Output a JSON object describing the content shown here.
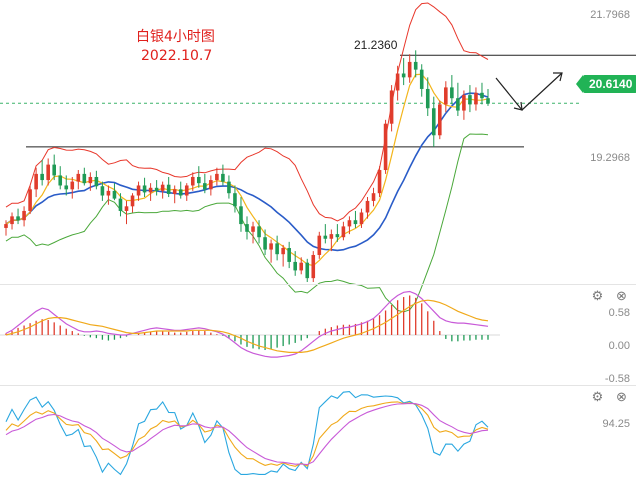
{
  "chart_data": [
    {
      "type": "candlestick",
      "title": "白银4小时图",
      "subtitle": "2022.10.7",
      "price_axis_ticks": [
        "21.7968",
        "19.2968"
      ],
      "current_price": "20.6140",
      "horizontal_levels": [
        {
          "label": "21.2360",
          "value": 21.236
        },
        {
          "label": "",
          "value": 20.05
        }
      ],
      "indicators": [
        "Bollinger Bands (upper, middle, lower)",
        "moving average"
      ],
      "ylim": [
        18.3,
        21.9
      ],
      "candles": [
        [
          19.0,
          19.1,
          18.9,
          19.05
        ],
        [
          19.05,
          19.2,
          18.98,
          19.15
        ],
        [
          19.15,
          19.25,
          19.05,
          19.1
        ],
        [
          19.1,
          19.28,
          19.02,
          19.22
        ],
        [
          19.22,
          19.55,
          19.18,
          19.5
        ],
        [
          19.5,
          19.78,
          19.4,
          19.7
        ],
        [
          19.7,
          19.88,
          19.55,
          19.62
        ],
        [
          19.62,
          19.9,
          19.55,
          19.82
        ],
        [
          19.82,
          19.95,
          19.62,
          19.68
        ],
        [
          19.68,
          19.8,
          19.5,
          19.55
        ],
        [
          19.55,
          19.68,
          19.42,
          19.5
        ],
        [
          19.5,
          19.66,
          19.38,
          19.6
        ],
        [
          19.6,
          19.75,
          19.5,
          19.7
        ],
        [
          19.7,
          19.78,
          19.55,
          19.58
        ],
        [
          19.58,
          19.72,
          19.48,
          19.66
        ],
        [
          19.66,
          19.74,
          19.5,
          19.54
        ],
        [
          19.54,
          19.6,
          19.35,
          19.42
        ],
        [
          19.42,
          19.55,
          19.3,
          19.48
        ],
        [
          19.48,
          19.58,
          19.36,
          19.38
        ],
        [
          19.38,
          19.45,
          19.15,
          19.22
        ],
        [
          19.22,
          19.35,
          19.05,
          19.28
        ],
        [
          19.28,
          19.45,
          19.2,
          19.42
        ],
        [
          19.42,
          19.6,
          19.35,
          19.55
        ],
        [
          19.55,
          19.65,
          19.4,
          19.46
        ],
        [
          19.46,
          19.58,
          19.35,
          19.52
        ],
        [
          19.52,
          19.62,
          19.42,
          19.48
        ],
        [
          19.48,
          19.6,
          19.38,
          19.56
        ],
        [
          19.56,
          19.66,
          19.4,
          19.44
        ],
        [
          19.44,
          19.55,
          19.32,
          19.5
        ],
        [
          19.5,
          19.6,
          19.38,
          19.42
        ],
        [
          19.42,
          19.58,
          19.35,
          19.55
        ],
        [
          19.55,
          19.72,
          19.48,
          19.66
        ],
        [
          19.66,
          19.8,
          19.52,
          19.58
        ],
        [
          19.58,
          19.7,
          19.45,
          19.5
        ],
        [
          19.5,
          19.68,
          19.42,
          19.62
        ],
        [
          19.62,
          19.78,
          19.55,
          19.7
        ],
        [
          19.7,
          19.82,
          19.55,
          19.6
        ],
        [
          19.6,
          19.68,
          19.38,
          19.45
        ],
        [
          19.45,
          19.55,
          19.2,
          19.28
        ],
        [
          19.28,
          19.4,
          18.95,
          19.05
        ],
        [
          19.05,
          19.15,
          18.85,
          18.95
        ],
        [
          18.95,
          19.08,
          18.8,
          19.02
        ],
        [
          19.02,
          19.1,
          18.8,
          18.88
        ],
        [
          18.88,
          18.98,
          18.65,
          18.72
        ],
        [
          18.72,
          18.85,
          18.55,
          18.8
        ],
        [
          18.8,
          18.9,
          18.58,
          18.66
        ],
        [
          18.66,
          18.78,
          18.5,
          18.74
        ],
        [
          18.74,
          18.82,
          18.48,
          18.56
        ],
        [
          18.56,
          18.7,
          18.38,
          18.45
        ],
        [
          18.45,
          18.62,
          18.4,
          18.55
        ],
        [
          18.55,
          18.6,
          18.3,
          18.35
        ],
        [
          18.35,
          18.7,
          18.3,
          18.65
        ],
        [
          18.65,
          18.95,
          18.6,
          18.9
        ],
        [
          18.9,
          19.05,
          18.8,
          18.86
        ],
        [
          18.86,
          18.98,
          18.7,
          18.92
        ],
        [
          18.92,
          19.05,
          18.82,
          18.88
        ],
        [
          18.88,
          19.08,
          18.84,
          19.02
        ],
        [
          19.02,
          19.15,
          18.92,
          19.1
        ],
        [
          19.1,
          19.22,
          19.0,
          19.05
        ],
        [
          19.05,
          19.25,
          19.0,
          19.2
        ],
        [
          19.2,
          19.4,
          19.12,
          19.35
        ],
        [
          19.35,
          19.52,
          19.28,
          19.45
        ],
        [
          19.45,
          19.8,
          19.4,
          19.75
        ],
        [
          19.75,
          20.4,
          19.7,
          20.35
        ],
        [
          20.35,
          20.85,
          20.25,
          20.78
        ],
        [
          20.78,
          21.1,
          20.65,
          21.0
        ],
        [
          21.0,
          21.2,
          20.85,
          20.95
        ],
        [
          20.95,
          21.25,
          20.88,
          21.15
        ],
        [
          21.15,
          21.3,
          20.95,
          21.05
        ],
        [
          21.05,
          21.12,
          20.7,
          20.8
        ],
        [
          20.8,
          20.95,
          20.45,
          20.55
        ],
        [
          20.55,
          20.7,
          20.05,
          20.2
        ],
        [
          20.2,
          20.65,
          20.15,
          20.6
        ],
        [
          20.6,
          20.9,
          20.5,
          20.82
        ],
        [
          20.82,
          20.98,
          20.6,
          20.68
        ],
        [
          20.68,
          20.88,
          20.45,
          20.52
        ],
        [
          20.52,
          20.78,
          20.4,
          20.72
        ],
        [
          20.72,
          20.85,
          20.5,
          20.6
        ],
        [
          20.6,
          20.82,
          20.52,
          20.75
        ],
        [
          20.75,
          20.88,
          20.6,
          20.68
        ],
        [
          20.68,
          20.8,
          20.58,
          20.61
        ]
      ]
    },
    {
      "type": "line",
      "panel": "MACD",
      "tick_labels": [
        "0.58",
        "0.00",
        "-0.58"
      ],
      "ylim": [
        -0.62,
        0.62
      ],
      "histogram": [
        0.02,
        0.05,
        0.09,
        0.12,
        0.15,
        0.18,
        0.2,
        0.19,
        0.16,
        0.12,
        0.08,
        0.05,
        0.02,
        -0.01,
        -0.03,
        -0.04,
        -0.06,
        -0.07,
        -0.06,
        -0.04,
        -0.02,
        0.0,
        0.02,
        0.03,
        0.04,
        0.05,
        0.05,
        0.04,
        0.03,
        0.03,
        0.04,
        0.05,
        0.06,
        0.05,
        0.03,
        0.01,
        -0.01,
        -0.04,
        -0.08,
        -0.12,
        -0.15,
        -0.17,
        -0.18,
        -0.19,
        -0.18,
        -0.16,
        -0.14,
        -0.12,
        -0.1,
        -0.07,
        -0.04,
        0.0,
        0.05,
        0.08,
        0.1,
        0.12,
        0.13,
        0.13,
        0.14,
        0.16,
        0.18,
        0.21,
        0.25,
        0.31,
        0.38,
        0.44,
        0.48,
        0.5,
        0.47,
        0.4,
        0.3,
        0.18,
        0.05,
        -0.05,
        -0.08,
        -0.08,
        -0.07,
        -0.07,
        -0.06,
        -0.06,
        -0.06
      ],
      "series": [
        {
          "color": "#c85ad8",
          "values": [
            0.02,
            0.06,
            0.12,
            0.18,
            0.24,
            0.3,
            0.34,
            0.32,
            0.26,
            0.2,
            0.14,
            0.1,
            0.06,
            0.04,
            0.04,
            0.05,
            0.04,
            0.02,
            0.01,
            0.0,
            0.0,
            0.02,
            0.04,
            0.06,
            0.08,
            0.09,
            0.08,
            0.07,
            0.06,
            0.06,
            0.07,
            0.08,
            0.09,
            0.08,
            0.06,
            0.04,
            0.01,
            -0.04,
            -0.1,
            -0.16,
            -0.2,
            -0.23,
            -0.25,
            -0.27,
            -0.28,
            -0.28,
            -0.27,
            -0.26,
            -0.24,
            -0.2,
            -0.14,
            -0.08,
            -0.02,
            0.02,
            0.05,
            0.07,
            0.09,
            0.1,
            0.12,
            0.14,
            0.17,
            0.21,
            0.28,
            0.36,
            0.44,
            0.5,
            0.54,
            0.55,
            0.52,
            0.46,
            0.38,
            0.3,
            0.22,
            0.18,
            0.16,
            0.15,
            0.15,
            0.14,
            0.13,
            0.12,
            0.11
          ]
        },
        {
          "color": "#f0a91a",
          "values": [
            0.0,
            0.02,
            0.04,
            0.07,
            0.1,
            0.14,
            0.18,
            0.21,
            0.22,
            0.22,
            0.21,
            0.19,
            0.17,
            0.15,
            0.13,
            0.12,
            0.11,
            0.09,
            0.07,
            0.05,
            0.03,
            0.02,
            0.02,
            0.03,
            0.04,
            0.05,
            0.05,
            0.05,
            0.05,
            0.05,
            0.05,
            0.06,
            0.06,
            0.06,
            0.06,
            0.05,
            0.04,
            0.02,
            -0.01,
            -0.04,
            -0.08,
            -0.11,
            -0.14,
            -0.16,
            -0.18,
            -0.2,
            -0.21,
            -0.22,
            -0.22,
            -0.22,
            -0.21,
            -0.19,
            -0.16,
            -0.13,
            -0.1,
            -0.07,
            -0.04,
            -0.02,
            0.0,
            0.02,
            0.05,
            0.08,
            0.12,
            0.16,
            0.21,
            0.26,
            0.31,
            0.36,
            0.4,
            0.43,
            0.44,
            0.43,
            0.41,
            0.38,
            0.34,
            0.3,
            0.27,
            0.24,
            0.21,
            0.19,
            0.18
          ]
        }
      ]
    },
    {
      "type": "line",
      "panel": "KDJ",
      "tick_labels": [
        "94.25"
      ],
      "ylim": [
        0,
        110
      ]
    }
  ]
}
